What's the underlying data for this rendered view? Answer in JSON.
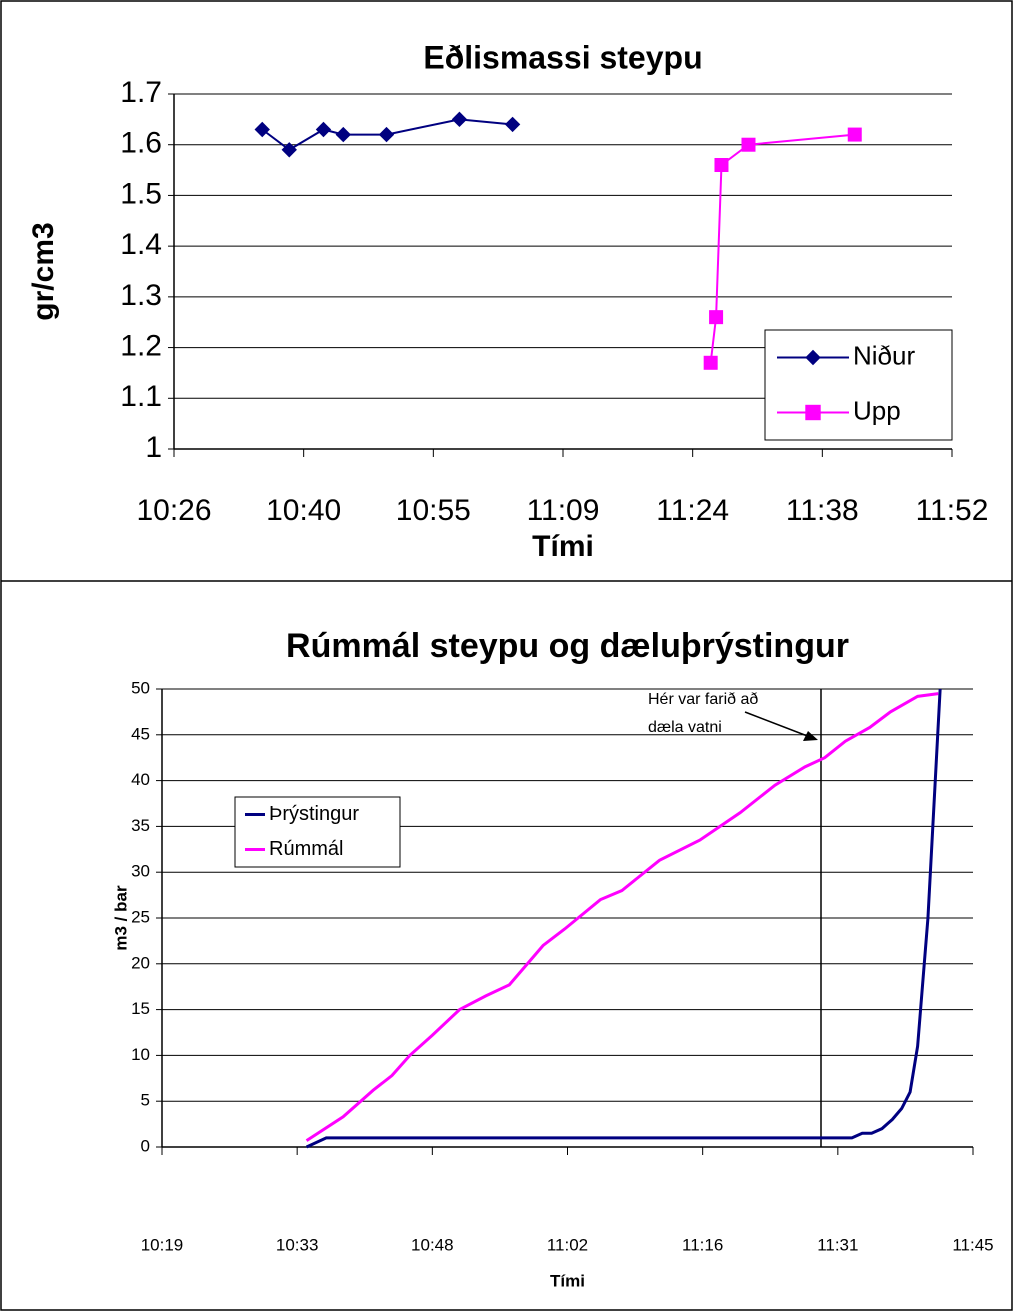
{
  "chart_data": [
    {
      "type": "line",
      "title": "Eðlismassi steypu",
      "x_label": "Tími",
      "y_label": "gr/cm3",
      "xlim": [
        626.4,
        712.8
      ],
      "xticks": [
        {
          "value": 626.4,
          "label": "10:26"
        },
        {
          "value": 640.8,
          "label": "10:40"
        },
        {
          "value": 655.2,
          "label": "10:55"
        },
        {
          "value": 669.6,
          "label": "11:09"
        },
        {
          "value": 684,
          "label": "11:24"
        },
        {
          "value": 698.4,
          "label": "11:38"
        },
        {
          "value": 712.8,
          "label": "11:52"
        }
      ],
      "ylim": [
        1,
        1.7
      ],
      "yticks": [
        1,
        1.1,
        1.2,
        1.3,
        1.4,
        1.5,
        1.6,
        1.7
      ],
      "grid": true,
      "legend": "lower right",
      "series": [
        {
          "name": "Niður",
          "color": "#000080",
          "marker": "diamond",
          "x": [
            636.2,
            639.2,
            643.0,
            645.2,
            650.0,
            658.1,
            664.0
          ],
          "values": [
            1.63,
            1.59,
            1.63,
            1.62,
            1.62,
            1.65,
            1.64
          ]
        },
        {
          "name": "Upp",
          "color": "#ff00ff",
          "marker": "square",
          "x": [
            686.0,
            686.6,
            687.2,
            690.2,
            702.0
          ],
          "values": [
            1.17,
            1.26,
            1.56,
            1.6,
            1.62
          ]
        }
      ]
    },
    {
      "type": "line",
      "title": "Rúmmál steypu og dæluþrýstingur",
      "x_label": "Tími",
      "y_label": "m3 / bar",
      "annotation": [
        "Hér var farið að",
        "dæla vatni"
      ],
      "xlim": [
        619.2,
        705.6
      ],
      "xticks": [
        {
          "value": 619.2,
          "label": "10:19"
        },
        {
          "value": 633.6,
          "label": "10:33"
        },
        {
          "value": 648,
          "label": "10:48"
        },
        {
          "value": 662.4,
          "label": "11:02"
        },
        {
          "value": 676.8,
          "label": "11:16"
        },
        {
          "value": 691.2,
          "label": "11:31"
        },
        {
          "value": 705.6,
          "label": "11:45"
        }
      ],
      "ylim": [
        0,
        50
      ],
      "yticks": [
        0,
        5,
        10,
        15,
        20,
        25,
        30,
        35,
        40,
        45,
        50
      ],
      "grid": true,
      "legend": "upper left",
      "series": [
        {
          "name": "Þrýstingur",
          "color": "#000080",
          "x": [
            634.6,
            636.7,
            692.7,
            693.8,
            694.8,
            695.9,
            697.0,
            698.0,
            698.9,
            699.7,
            700.8,
            702.1
          ],
          "values": [
            0,
            1,
            1,
            1.5,
            1.5,
            2,
            3,
            4.2,
            6,
            11,
            25,
            50
          ]
        },
        {
          "name": "Rúmmál",
          "color": "#ff00ff",
          "x": [
            634.6,
            638.5,
            641.7,
            643.7,
            645.6,
            648.0,
            650.9,
            653.7,
            656.2,
            659.8,
            662.1,
            665.9,
            668.2,
            672.2,
            676.5,
            680.8,
            684.5,
            687.7,
            689.8,
            692.0,
            694.6,
            696.8,
            699.7,
            701.9
          ],
          "values": [
            0.7,
            3.3,
            6.2,
            7.8,
            10,
            12.2,
            15,
            16.5,
            17.7,
            22,
            23.8,
            27,
            28,
            31.3,
            33.5,
            36.5,
            39.5,
            41.5,
            42.5,
            44.3,
            45.8,
            47.5,
            49.2,
            49.5
          ]
        }
      ]
    }
  ]
}
